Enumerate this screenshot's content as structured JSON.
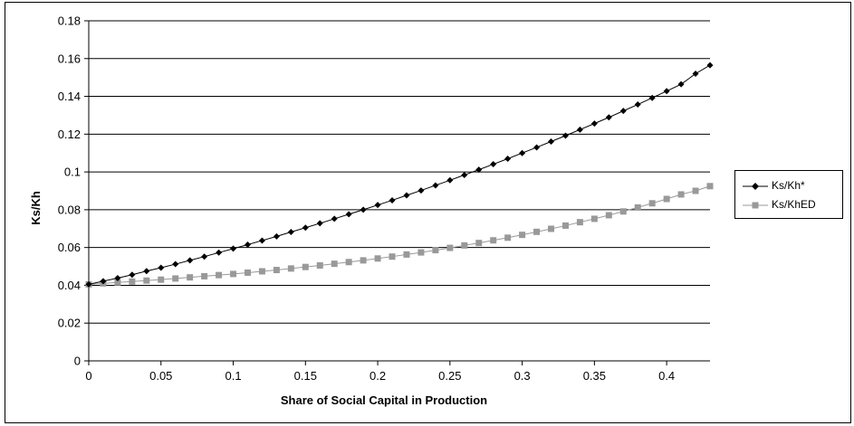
{
  "chart_data": {
    "type": "line",
    "title": "",
    "xlabel": "Share of Social Capital in Production",
    "ylabel": "Ks/Kh",
    "xlim": [
      0,
      0.43
    ],
    "ylim": [
      0,
      0.18
    ],
    "x_ticks": [
      "0",
      "0.05",
      "0.1",
      "0.15",
      "0.2",
      "0.25",
      "0.3",
      "0.35",
      "0.4"
    ],
    "y_ticks": [
      "0",
      "0.02",
      "0.04",
      "0.06",
      "0.08",
      "0.1",
      "0.12",
      "0.14",
      "0.16",
      "0.18"
    ],
    "grid": "horizontal",
    "legend_position": "right",
    "x": [
      0,
      0.01,
      0.02,
      0.03,
      0.04,
      0.05,
      0.06,
      0.07,
      0.08,
      0.09,
      0.1,
      0.11,
      0.12,
      0.13,
      0.14,
      0.15,
      0.16,
      0.17,
      0.18,
      0.19,
      0.2,
      0.21,
      0.22,
      0.23,
      0.24,
      0.25,
      0.26,
      0.27,
      0.28,
      0.29,
      0.3,
      0.31,
      0.32,
      0.33,
      0.34,
      0.35,
      0.36,
      0.37,
      0.38,
      0.39,
      0.4,
      0.41,
      0.42,
      0.43
    ],
    "series": [
      {
        "name": "Ks/Kh*",
        "color": "#000000",
        "marker": "diamond",
        "values": [
          0.0405,
          0.0422,
          0.0438,
          0.0456,
          0.0475,
          0.0493,
          0.0512,
          0.0532,
          0.0552,
          0.0573,
          0.0594,
          0.0615,
          0.0637,
          0.0659,
          0.0682,
          0.0705,
          0.0728,
          0.0752,
          0.0776,
          0.08,
          0.0825,
          0.085,
          0.0876,
          0.0902,
          0.0929,
          0.0956,
          0.0984,
          0.1012,
          0.1041,
          0.107,
          0.11,
          0.113,
          0.1161,
          0.1192,
          0.1224,
          0.1256,
          0.1289,
          0.1323,
          0.1357,
          0.1392,
          0.1428,
          0.1464,
          0.152,
          0.1565
        ]
      },
      {
        "name": "Ks/KhED",
        "color": "#999999",
        "marker": "square",
        "values": [
          0.0405,
          0.041,
          0.0415,
          0.042,
          0.0425,
          0.043,
          0.0436,
          0.0442,
          0.0448,
          0.0454,
          0.046,
          0.0467,
          0.0474,
          0.0481,
          0.0489,
          0.0497,
          0.0505,
          0.0514,
          0.0523,
          0.0532,
          0.0542,
          0.0552,
          0.0563,
          0.0574,
          0.0586,
          0.0598,
          0.0611,
          0.0624,
          0.0638,
          0.0652,
          0.0667,
          0.0683,
          0.0699,
          0.0716,
          0.0734,
          0.0752,
          0.0771,
          0.0791,
          0.0812,
          0.0834,
          0.0857,
          0.0881,
          0.09,
          0.0925
        ]
      }
    ]
  }
}
